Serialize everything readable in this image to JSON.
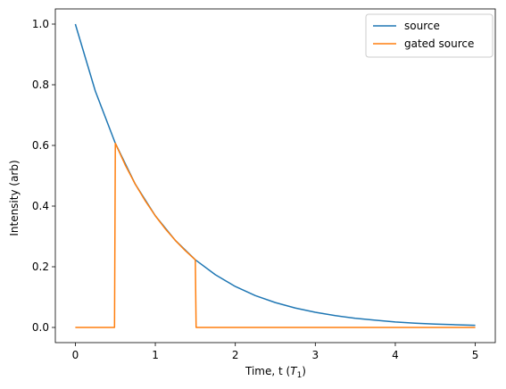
{
  "chart_data": {
    "type": "line",
    "xlabel_prefix": "Time, t (",
    "xlabel_symbol": "T",
    "xlabel_subscript": "1",
    "xlabel_suffix": ")",
    "ylabel": "Intensity (arb)",
    "xlim": [
      -0.25,
      5.25
    ],
    "ylim": [
      -0.05,
      1.05
    ],
    "xticks": [
      0,
      1,
      2,
      3,
      4,
      5
    ],
    "xtick_labels": [
      "0",
      "1",
      "2",
      "3",
      "4",
      "5"
    ],
    "yticks": [
      0.0,
      0.2,
      0.4,
      0.6,
      0.8,
      1.0
    ],
    "ytick_labels": [
      "0.0",
      "0.2",
      "0.4",
      "0.6",
      "0.8",
      "1.0"
    ],
    "grid": false,
    "legend_position": "top-right",
    "series": [
      {
        "name": "source",
        "color": "#1f77b4",
        "x": [
          0,
          0.25,
          0.5,
          0.75,
          1.0,
          1.25,
          1.5,
          1.75,
          2.0,
          2.25,
          2.5,
          2.75,
          3.0,
          3.25,
          3.5,
          3.75,
          4.0,
          4.25,
          4.5,
          4.75,
          5.0
        ],
        "y": [
          1.0,
          0.779,
          0.607,
          0.472,
          0.368,
          0.287,
          0.223,
          0.174,
          0.135,
          0.105,
          0.082,
          0.064,
          0.05,
          0.039,
          0.03,
          0.024,
          0.018,
          0.014,
          0.011,
          0.009,
          0.007
        ]
      },
      {
        "name": "gated source",
        "color": "#ff7f0e",
        "x": [
          0,
          0.49,
          0.5,
          0.625,
          0.75,
          0.875,
          1.0,
          1.125,
          1.25,
          1.375,
          1.5,
          1.51,
          5.0
        ],
        "y": [
          0,
          0,
          0.607,
          0.535,
          0.472,
          0.417,
          0.368,
          0.325,
          0.287,
          0.253,
          0.223,
          0,
          0
        ]
      }
    ]
  }
}
